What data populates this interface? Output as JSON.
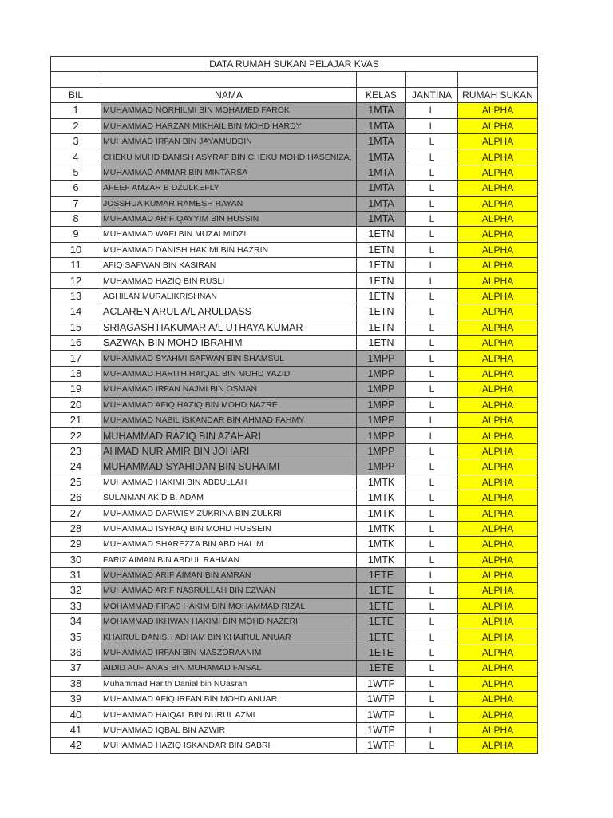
{
  "title": "DATA RUMAH SUKAN PELAJAR KVAS",
  "headers": {
    "bil": "BIL",
    "nama": "NAMA",
    "kelas": "KELAS",
    "jantina": "JANTINA",
    "rumah": "RUMAH SUKAN"
  },
  "colors": {
    "shaded": "#a6a6a6",
    "house_highlight": "#ffff00"
  },
  "rows": [
    {
      "bil": "1",
      "nama": "MUHAMMAD NORHILMI BIN MOHAMED FAROK",
      "kelas": "1MTA",
      "jantina": "L",
      "rumah": "ALPHA",
      "shaded": true
    },
    {
      "bil": "2",
      "nama": "MUHAMMAD HARZAN MIKHAIL BIN MOHD HARDY",
      "kelas": "1MTA",
      "jantina": "L",
      "rumah": "ALPHA",
      "shaded": true
    },
    {
      "bil": "3",
      "nama": "MUHAMMAD IRFAN BIN JAYAMUDDIN",
      "kelas": "1MTA",
      "jantina": "L",
      "rumah": "ALPHA",
      "shaded": true
    },
    {
      "bil": "4",
      "nama": "CHEKU MUHD DANISH ASYRAF BIN CHEKU MOHD HASENIZA,",
      "kelas": "1MTA",
      "jantina": "L",
      "rumah": "ALPHA",
      "shaded": true
    },
    {
      "bil": "5",
      "nama": "MUHAMMAD AMMAR BIN MINTARSA",
      "kelas": "1MTA",
      "jantina": "L",
      "rumah": "ALPHA",
      "shaded": true
    },
    {
      "bil": "6",
      "nama": "AFEEF AMZAR B DZULKEFLY",
      "kelas": "1MTA",
      "jantina": "L",
      "rumah": "ALPHA",
      "shaded": true
    },
    {
      "bil": "7",
      "nama": "JOSSHUA KUMAR RAMESH RAYAN",
      "kelas": "1MTA",
      "jantina": "L",
      "rumah": "ALPHA",
      "shaded": true
    },
    {
      "bil": "8",
      "nama": "MUHAMMAD ARIF QAYYIM BIN HUSSIN",
      "kelas": "1MTA",
      "jantina": "L",
      "rumah": "ALPHA",
      "shaded": true
    },
    {
      "bil": "9",
      "nama": "MUHAMMAD WAFI BIN MUZALMIDZI",
      "kelas": "1ETN",
      "jantina": "L",
      "rumah": "ALPHA",
      "shaded": false
    },
    {
      "bil": "10",
      "nama": "MUHAMMAD DANISH HAKIMI BIN HAZRIN",
      "kelas": "1ETN",
      "jantina": "L",
      "rumah": "ALPHA",
      "shaded": false
    },
    {
      "bil": "11",
      "nama": "AFIQ SAFWAN BIN KASIRAN",
      "kelas": "1ETN",
      "jantina": "L",
      "rumah": "ALPHA",
      "shaded": false
    },
    {
      "bil": "12",
      "nama": "MUHAMMAD HAZIQ BIN RUSLI",
      "kelas": "1ETN",
      "jantina": "L",
      "rumah": "ALPHA",
      "shaded": false
    },
    {
      "bil": "13",
      "nama": "AGHILAN MURALIKRISHNAN",
      "kelas": "1ETN",
      "jantina": "L",
      "rumah": "ALPHA",
      "shaded": false
    },
    {
      "bil": "14",
      "nama": "ACLAREN ARUL A/L ARULDASS",
      "kelas": "1ETN",
      "jantina": "L",
      "rumah": "ALPHA",
      "shaded": false
    },
    {
      "bil": "15",
      "nama": "SRIAGASHTIAKUMAR A/L UTHAYA KUMAR",
      "kelas": "1ETN",
      "jantina": "L",
      "rumah": "ALPHA",
      "shaded": false
    },
    {
      "bil": "16",
      "nama": "SAZWAN BIN MOHD IBRAHIM",
      "kelas": "1ETN",
      "jantina": "L",
      "rumah": "ALPHA",
      "shaded": false
    },
    {
      "bil": "17",
      "nama": "MUHAMMAD SYAHMI SAFWAN BIN SHAMSUL",
      "kelas": "1MPP",
      "jantina": "L",
      "rumah": "ALPHA",
      "shaded": true
    },
    {
      "bil": "18",
      "nama": "MUHAMMAD HARITH HAIQAL BIN MOHD YAZID",
      "kelas": "1MPP",
      "jantina": "L",
      "rumah": "ALPHA",
      "shaded": true
    },
    {
      "bil": "19",
      "nama": "MUHAMMAD IRFAN NAJMI BIN OSMAN",
      "kelas": "1MPP",
      "jantina": "L",
      "rumah": "ALPHA",
      "shaded": true
    },
    {
      "bil": "20",
      "nama": "MUHAMMAD AFIQ HAZIQ BIN MOHD NAZRE",
      "kelas": "1MPP",
      "jantina": "L",
      "rumah": "ALPHA",
      "shaded": true
    },
    {
      "bil": "21",
      "nama": "MUHAMMAD NABIL ISKANDAR BIN AHMAD FAHMY",
      "kelas": "1MPP",
      "jantina": "L",
      "rumah": "ALPHA",
      "shaded": true
    },
    {
      "bil": "22",
      "nama": "MUHAMMAD RAZIQ BIN AZAHARI",
      "kelas": "1MPP",
      "jantina": "L",
      "rumah": "ALPHA",
      "shaded": true
    },
    {
      "bil": "23",
      "nama": "AHMAD NUR AMIR BIN JOHARI",
      "kelas": "1MPP",
      "jantina": "L",
      "rumah": "ALPHA",
      "shaded": true
    },
    {
      "bil": "24",
      "nama": "MUHAMMAD SYAHIDAN BIN SUHAIMI",
      "kelas": "1MPP",
      "jantina": "L",
      "rumah": "ALPHA",
      "shaded": true
    },
    {
      "bil": "25",
      "nama": "MUHAMMAD HAKIMI BIN ABDULLAH",
      "kelas": "1MTK",
      "jantina": "L",
      "rumah": "ALPHA",
      "shaded": false
    },
    {
      "bil": "26",
      "nama": "SULAIMAN AKID B. ADAM",
      "kelas": "1MTK",
      "jantina": "L",
      "rumah": "ALPHA",
      "shaded": false
    },
    {
      "bil": "27",
      "nama": "MUHAMMAD DARWISY ZUKRINA BIN ZULKRI",
      "kelas": "1MTK",
      "jantina": "L",
      "rumah": "ALPHA",
      "shaded": false
    },
    {
      "bil": "28",
      "nama": "MUHAMMAD ISYRAQ BIN MOHD HUSSEIN",
      "kelas": "1MTK",
      "jantina": "L",
      "rumah": "ALPHA",
      "shaded": false
    },
    {
      "bil": "29",
      "nama": "MUHAMMAD SHAREZZA BIN ABD HALIM",
      "kelas": "1MTK",
      "jantina": "L",
      "rumah": "ALPHA",
      "shaded": false
    },
    {
      "bil": "30",
      "nama": "FARIZ AIMAN BIN ABDUL RAHMAN",
      "kelas": "1MTK",
      "jantina": "L",
      "rumah": "ALPHA",
      "shaded": false
    },
    {
      "bil": "31",
      "nama": "MUHAMMAD ARIF AIMAN BIN AMRAN",
      "kelas": "1ETE",
      "jantina": "L",
      "rumah": "ALPHA",
      "shaded": true
    },
    {
      "bil": "32",
      "nama": "MUHAMMAD ARIF NASRULLAH BIN EZWAN",
      "kelas": "1ETE",
      "jantina": "L",
      "rumah": "ALPHA",
      "shaded": true
    },
    {
      "bil": "33",
      "nama": "MOHAMMAD FIRAS HAKIM BIN MOHAMMAD RIZAL",
      "kelas": "1ETE",
      "jantina": "L",
      "rumah": "ALPHA",
      "shaded": true
    },
    {
      "bil": "34",
      "nama": "MOHAMMAD IKHWAN HAKIMI BIN MOHD NAZERI",
      "kelas": "1ETE",
      "jantina": "L",
      "rumah": "ALPHA",
      "shaded": true
    },
    {
      "bil": "35",
      "nama": "KHAIRUL DANISH ADHAM BIN KHAIRUL ANUAR",
      "kelas": "1ETE",
      "jantina": "L",
      "rumah": "ALPHA",
      "shaded": true
    },
    {
      "bil": "36",
      "nama": "MUHAMMAD IRFAN BIN MASZORAANIM",
      "kelas": "1ETE",
      "jantina": "L",
      "rumah": "ALPHA",
      "shaded": true
    },
    {
      "bil": "37",
      "nama": "AIDID AUF ANAS BIN MUHAMAD FAISAL",
      "kelas": "1ETE",
      "jantina": "L",
      "rumah": "ALPHA",
      "shaded": true
    },
    {
      "bil": "38",
      "nama": "Muhammad Harith Danial bin NUasrah",
      "kelas": "1WTP",
      "jantina": "L",
      "rumah": "ALPHA",
      "shaded": false
    },
    {
      "bil": "39",
      "nama": "MUHAMMAD AFIQ IRFAN BIN MOHD ANUAR",
      "kelas": "1WTP",
      "jantina": "L",
      "rumah": "ALPHA",
      "shaded": false
    },
    {
      "bil": "40",
      "nama": "MUHAMMAD HAIQAL BIN NURUL AZMI",
      "kelas": "1WTP",
      "jantina": "L",
      "rumah": "ALPHA",
      "shaded": false
    },
    {
      "bil": "41",
      "nama": "MUHAMMAD IQBAL BIN AZWIR",
      "kelas": "1WTP",
      "jantina": "L",
      "rumah": "ALPHA",
      "shaded": false
    },
    {
      "bil": "42",
      "nama": "MUHAMMAD HAZIQ ISKANDAR BIN SABRI",
      "kelas": "1WTP",
      "jantina": "L",
      "rumah": "ALPHA",
      "shaded": false
    }
  ]
}
